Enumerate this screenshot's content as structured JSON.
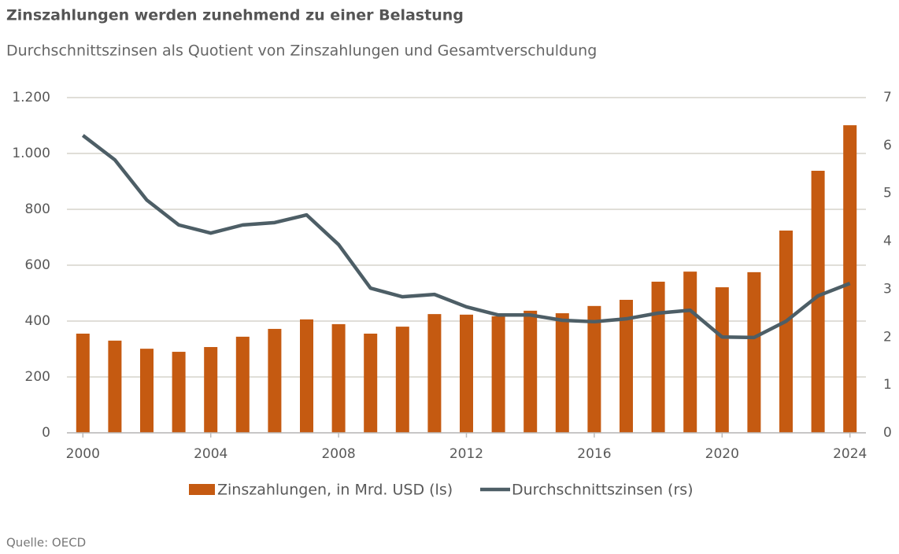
{
  "chart_data": {
    "type": "bar",
    "title": "Zinszahlungen werden zunehmend zu einer Belastung",
    "subtitle": "Durchschnittszinsen als Quotient von Zinszahlungen und Gesamtverschuldung",
    "source": "Quelle: OECD",
    "x": [
      2000,
      2001,
      2002,
      2003,
      2004,
      2005,
      2006,
      2007,
      2008,
      2009,
      2010,
      2011,
      2012,
      2013,
      2014,
      2015,
      2016,
      2017,
      2018,
      2019,
      2020,
      2021,
      2022,
      2023,
      2024
    ],
    "xlim": [
      1999.5,
      2024.5
    ],
    "xticks": [
      2000,
      2004,
      2008,
      2012,
      2016,
      2020,
      2024
    ],
    "ylim": [
      0,
      1200
    ],
    "yticks": [
      0,
      200,
      400,
      600,
      800,
      {
        "value": 1000,
        "label": "1.000"
      },
      {
        "value": 1200,
        "label": "1.200"
      }
    ],
    "y2lim": [
      0,
      7
    ],
    "y2ticks": [
      0,
      1,
      2,
      3,
      4,
      5,
      6,
      7
    ],
    "grid": true,
    "legend": "bottom",
    "series": [
      {
        "name": "Zinszahlungen, in Mrd. USD (ls)",
        "type": "bar",
        "color": "#c55a11",
        "values": [
          355,
          330,
          301,
          290,
          307,
          344,
          372,
          406,
          389,
          355,
          380,
          425,
          423,
          417,
          437,
          428,
          454,
          476,
          541,
          577,
          521,
          575,
          724,
          938,
          1101
        ]
      },
      {
        "name": "Durchschnittszinsen (rs)",
        "type": "line",
        "axis": "y2",
        "color": "#4d5e66",
        "values": [
          6.21,
          5.7,
          4.86,
          4.34,
          4.17,
          4.34,
          4.39,
          4.55,
          3.93,
          3.02,
          2.84,
          2.89,
          2.63,
          2.46,
          2.46,
          2.35,
          2.32,
          2.38,
          2.5,
          2.56,
          2.0,
          1.99,
          2.33,
          2.86,
          3.12
        ]
      }
    ]
  }
}
